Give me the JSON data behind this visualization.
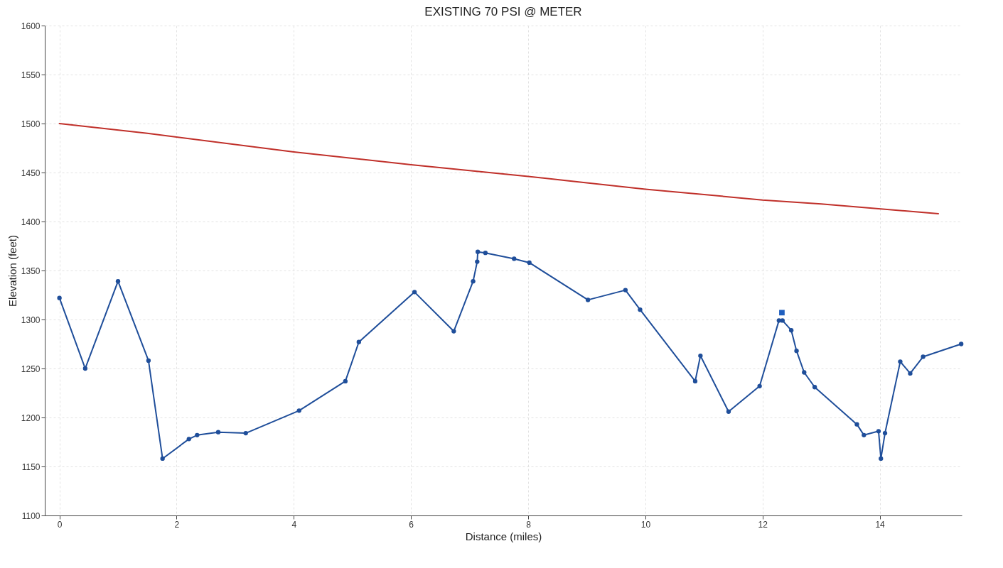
{
  "chart_data": {
    "type": "line",
    "title": "EXISTING 70 PSI @ METER",
    "xlabel": "Distance (miles)",
    "ylabel": "Elevation (feet)",
    "xlim": [
      -0.25,
      15.4
    ],
    "xticks": [
      0,
      2,
      4,
      6,
      8,
      10,
      12,
      14
    ],
    "ylim": [
      1100,
      1600
    ],
    "yticks": [
      1100,
      1150,
      1200,
      1250,
      1300,
      1350,
      1400,
      1450,
      1500,
      1550,
      1600
    ],
    "grid": true,
    "line_style": "solid",
    "marker": "circle",
    "series": [
      {
        "color": "#c0302a",
        "marker": "none",
        "x": [
          0,
          1.5,
          4,
          6,
          8,
          10,
          12,
          13,
          15
        ],
        "values": [
          1500,
          1490,
          1471,
          1458,
          1446,
          1433,
          1422,
          1418,
          1408
        ]
      },
      {
        "color": "#1f4e9a",
        "x": [
          0,
          0.44,
          1.0,
          1.52,
          1.76,
          2.21,
          2.35,
          2.71,
          3.18,
          4.09,
          4.88,
          5.11,
          6.06,
          6.73,
          7.06,
          7.13,
          7.14,
          7.27,
          7.76,
          8.02,
          9.02,
          9.66,
          9.91,
          10.85,
          10.94,
          11.42,
          11.95,
          12.28,
          12.34,
          12.49,
          12.58,
          12.71,
          12.89,
          13.61,
          13.73,
          13.98,
          14.02,
          14.09,
          14.35,
          14.52,
          14.74,
          15.39
        ],
        "values": [
          1322,
          1250,
          1339,
          1258,
          1158,
          1178,
          1182,
          1185,
          1184,
          1207,
          1237,
          1277,
          1328,
          1288,
          1339,
          1359,
          1369,
          1368,
          1362,
          1358,
          1320,
          1330,
          1310,
          1237,
          1263,
          1206,
          1232,
          1299,
          1299,
          1289,
          1268,
          1246,
          1231,
          1193,
          1182,
          1186,
          1158,
          1184,
          1257,
          1245,
          1262,
          1275
        ]
      },
      {
        "type": "scatter",
        "color": "#1f5fbf",
        "marker": "square",
        "x": [
          12.33
        ],
        "values": [
          1307
        ]
      }
    ]
  }
}
